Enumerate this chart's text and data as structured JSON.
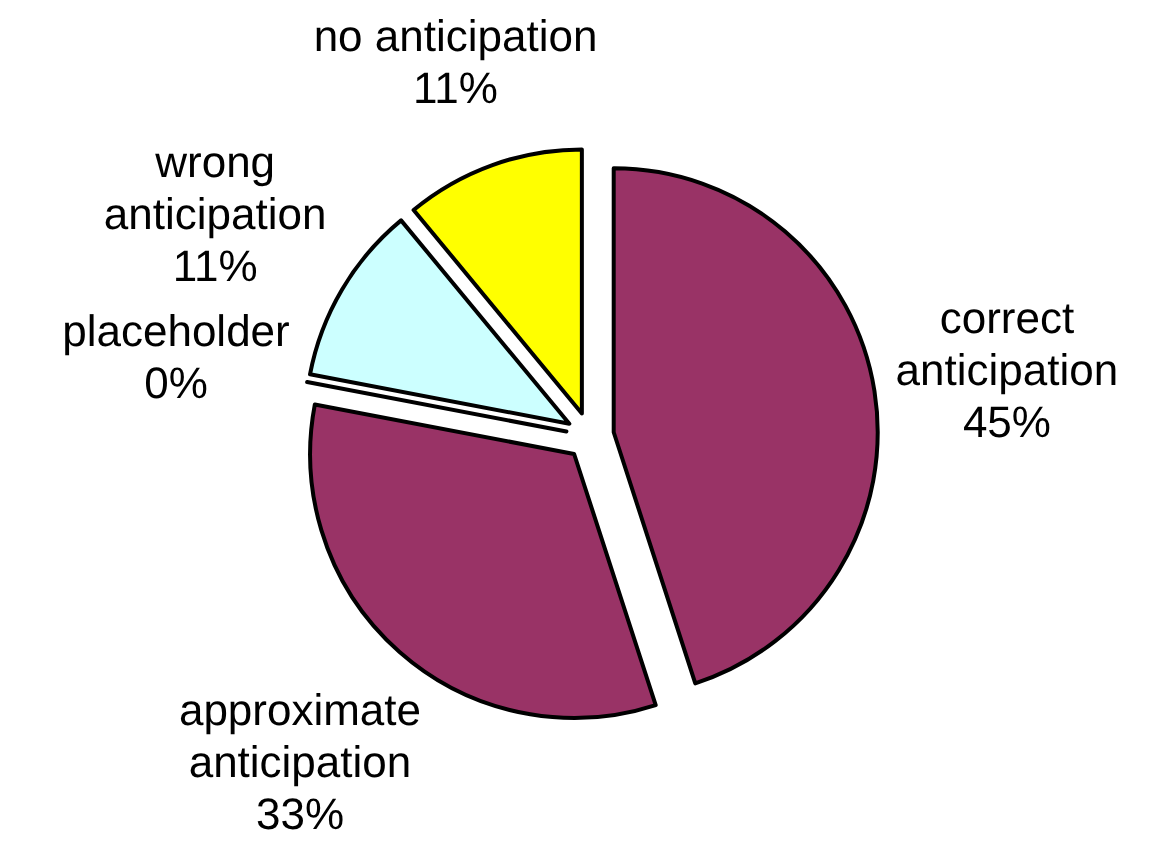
{
  "chart_data": {
    "type": "pie",
    "categories": [
      "correct anticipation",
      "approximate anticipation",
      "placeholder",
      "wrong anticipation",
      "no anticipation"
    ],
    "values": [
      45,
      33,
      0,
      11,
      11
    ],
    "colors": [
      "#993366",
      "#993366",
      "#ffffff",
      "#ccffff",
      "#ffff00"
    ],
    "value_labels": [
      "45%",
      "33%",
      "0%",
      "11%",
      "11%"
    ]
  }
}
